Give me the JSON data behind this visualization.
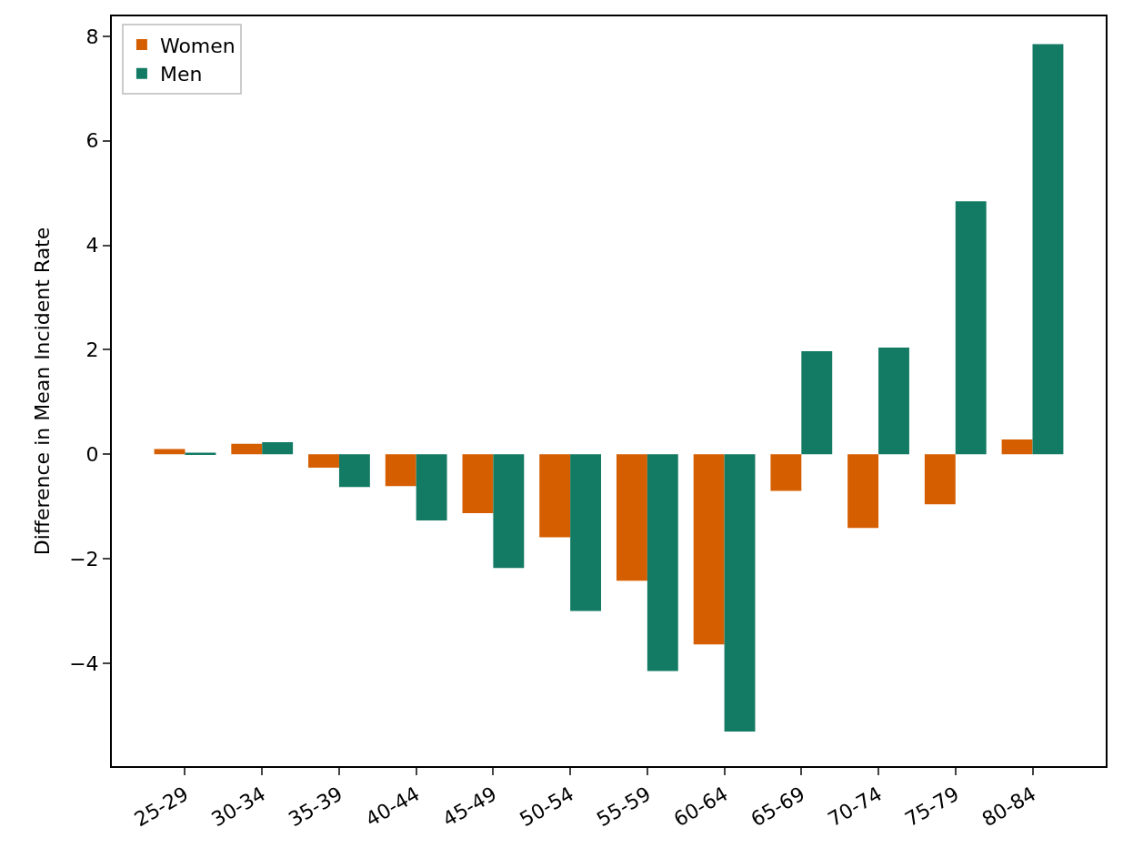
{
  "chart_data": {
    "type": "bar",
    "ylabel": "Difference in Mean Incident Rate",
    "categories": [
      "25-29",
      "30-34",
      "35-39",
      "40-44",
      "45-49",
      "50-54",
      "55-59",
      "60-64",
      "65-69",
      "70-74",
      "75-79",
      "80-84"
    ],
    "series": [
      {
        "name": "Women",
        "color": "#d55e00",
        "values": [
          0.1,
          0.2,
          -0.26,
          -0.61,
          -1.13,
          -1.59,
          -2.42,
          -3.64,
          -0.7,
          -1.41,
          -0.96,
          0.28
        ]
      },
      {
        "name": "Men",
        "color": "#137a63",
        "values": [
          0.03,
          0.23,
          -0.63,
          -1.27,
          -2.18,
          -3.0,
          -4.15,
          -5.31,
          1.97,
          2.04,
          4.84,
          7.85
        ]
      }
    ],
    "ylim": [
      -5.97,
      8.38
    ],
    "yticks": [
      {
        "value": -4,
        "label": "−4"
      },
      {
        "value": -2,
        "label": "−2"
      },
      0,
      2,
      4,
      6,
      8
    ],
    "grid": false,
    "legend": "top left"
  }
}
